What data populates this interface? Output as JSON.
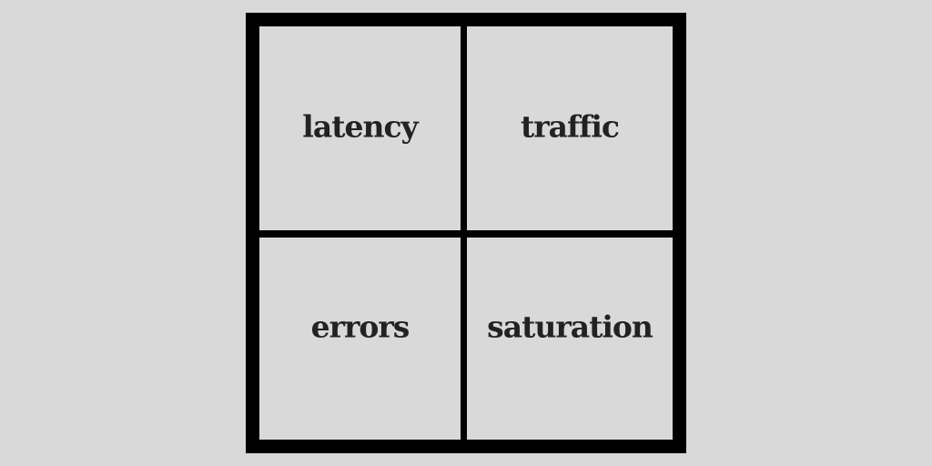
{
  "background_color": "#d9d9d9",
  "border_color": "#000000",
  "text_color": "#222222",
  "quadrants": {
    "top_left": {
      "label": "latency"
    },
    "top_right": {
      "label": "traffic"
    },
    "bottom_left": {
      "label": "errors"
    },
    "bottom_right": {
      "label": "saturation"
    }
  }
}
